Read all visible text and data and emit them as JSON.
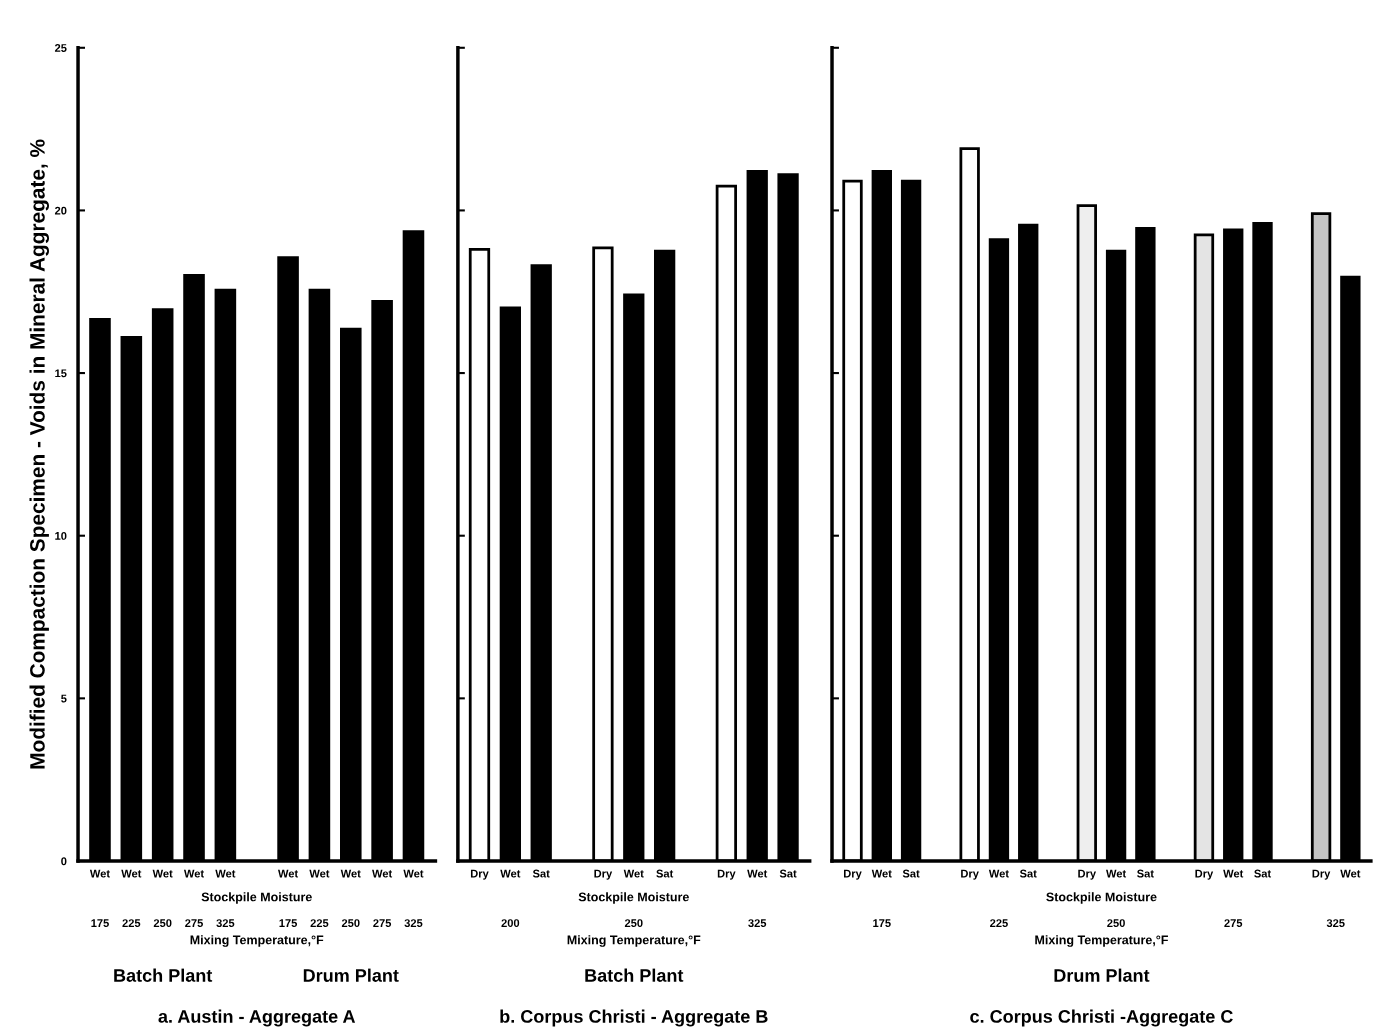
{
  "chart_data": [
    {
      "type": "bar",
      "title": "a. Austin - Aggregate A",
      "xlabel": "Stockpile Moisture",
      "ylabel": "Modified Compaction Specimen - Voids in Mineral Aggregate, %",
      "categories": [
        "Wet",
        "Wet",
        "Wet",
        "Wet",
        "Wet",
        null,
        "Wet",
        "Wet",
        "Wet",
        "Wet",
        "Wet"
      ],
      "values": [
        16.65,
        16.1,
        16.95,
        18.0,
        17.55,
        null,
        18.55,
        17.55,
        16.35,
        17.2,
        19.35
      ],
      "colors": [
        "#000000",
        "#000000",
        "#000000",
        "#000000",
        "#000000",
        null,
        "#000000",
        "#000000",
        "#000000",
        "#000000",
        "#000000"
      ],
      "annotations": [
        "175",
        "225",
        "250",
        "275",
        "325",
        "175",
        "225",
        "250",
        "275",
        "325",
        "Mixing Temperature,°F",
        "Batch Plant",
        "Drum Plant"
      ],
      "ylim": [
        0,
        25
      ],
      "yticks": [
        0,
        5,
        10,
        15,
        20,
        25
      ],
      "grid": false
    },
    {
      "type": "bar",
      "title": "b. Corpus Christi - Aggregate B",
      "xlabel": "Stockpile Moisture",
      "categories": [
        "Dry",
        "Wet",
        "Sat",
        null,
        "Dry",
        "Wet",
        "Sat",
        null,
        "Dry",
        "Wet",
        "Sat"
      ],
      "values": [
        18.8,
        17.0,
        18.3,
        null,
        18.85,
        17.4,
        18.75,
        null,
        20.75,
        21.2,
        21.1
      ],
      "colors": [
        "#ffffff",
        "#000000",
        "#000000",
        null,
        "#ffffff",
        "#000000",
        "#000000",
        null,
        "#ffffff",
        "#000000",
        "#000000"
      ],
      "annotations": [
        "200",
        "250",
        "325",
        "Mixing Temperature,°F",
        "Batch Plant"
      ],
      "ylim": [
        0,
        25
      ],
      "yticks": [
        0,
        5,
        10,
        15,
        20,
        25
      ],
      "tick_labels": "x",
      "grid": false
    },
    {
      "type": "bar",
      "title": "c. Corpus Christi -Aggregate C",
      "xlabel": "Stockpile Moisture",
      "categories": [
        "Dry",
        "Wet",
        "Sat",
        null,
        "Dry",
        "Wet",
        "Sat",
        null,
        "Dry",
        "Wet",
        "Sat",
        null,
        "Dry",
        "Wet",
        "Sat",
        null,
        "Dry",
        "Wet"
      ],
      "values": [
        20.9,
        21.2,
        20.9,
        null,
        21.9,
        19.1,
        19.55,
        null,
        20.15,
        18.75,
        19.45,
        null,
        19.25,
        19.4,
        19.6,
        null,
        19.9,
        17.95
      ],
      "colors": [
        "#ffffff",
        "#000000",
        "#000000",
        null,
        "#ffffff",
        "#000000",
        "#000000",
        null,
        "#eeeeee",
        "#000000",
        "#000000",
        null,
        "#e4e4e4",
        "#000000",
        "#000000",
        null,
        "#c4c4c4",
        "#000000"
      ],
      "annotations": [
        "175",
        "225",
        "250",
        "275",
        "325",
        "Mixing Temperature,°F",
        "Drum Plant"
      ],
      "ylim": [
        0,
        25
      ],
      "yticks": [
        0,
        5,
        10,
        15,
        20,
        25
      ],
      "tick_labels": "x",
      "grid": false
    }
  ]
}
